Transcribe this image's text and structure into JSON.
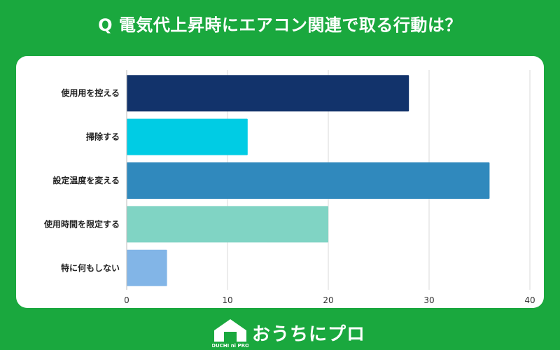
{
  "header": {
    "title": "Q 電気代上昇時にエアコン関連で取る行動は？"
  },
  "footer": {
    "brand": "おうちにプロ",
    "logo_text": "OUCHI ni PRO"
  },
  "colors": {
    "background": "#1aa83e",
    "panel": "#ffffff",
    "grid": "#d9d9d9"
  },
  "chart_data": {
    "type": "bar",
    "orientation": "horizontal",
    "categories": [
      "使用用を控える",
      "掃除する",
      "設定温度を変える",
      "使用時間を限定する",
      "特に何もしない"
    ],
    "values": [
      28,
      12,
      36,
      20,
      4
    ],
    "bar_colors": [
      "#12336b",
      "#00cce4",
      "#3089bd",
      "#80d4c4",
      "#82b5e7"
    ],
    "xlim": [
      0,
      40
    ],
    "xticks": [
      0,
      10,
      20,
      30,
      40
    ],
    "grid": true
  }
}
